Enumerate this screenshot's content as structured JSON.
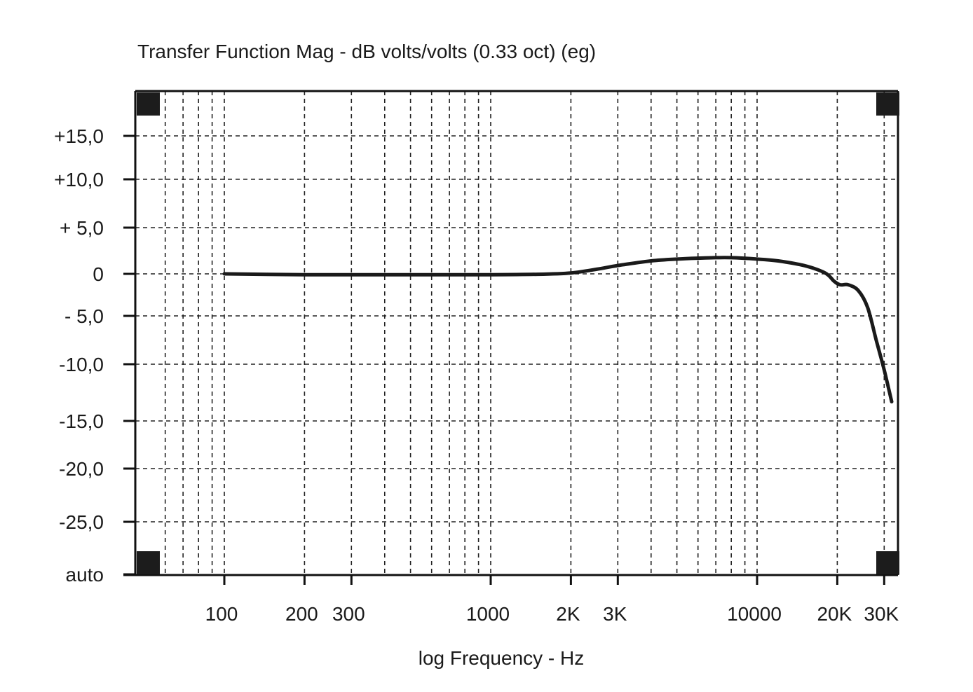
{
  "chart_data": {
    "type": "line",
    "title": "Transfer Function Mag - dB volts/volts (0.33 oct) (eg)",
    "xlabel": "log Frequency - Hz",
    "ylabel": "",
    "x_scale": "log",
    "xlim": [
      50,
      33000
    ],
    "ylim_labeled": [
      "auto",
      15
    ],
    "x_ticks": [
      {
        "value": 100,
        "label": "100"
      },
      {
        "value": 200,
        "label": "200"
      },
      {
        "value": 300,
        "label": "300"
      },
      {
        "value": 1000,
        "label": "1000"
      },
      {
        "value": 2000,
        "label": "2K"
      },
      {
        "value": 3000,
        "label": "3K"
      },
      {
        "value": 10000,
        "label": "10000"
      },
      {
        "value": 20000,
        "label": "20K"
      },
      {
        "value": 30000,
        "label": "30K"
      }
    ],
    "y_ticks": [
      {
        "value": 15,
        "label": "+15,0"
      },
      {
        "value": 10,
        "label": "+10,0"
      },
      {
        "value": 5,
        "label": "+ 5,0"
      },
      {
        "value": 0,
        "label": "0"
      },
      {
        "value": -5,
        "label": "- 5,0"
      },
      {
        "value": -10,
        "label": "-10,0"
      },
      {
        "value": -15,
        "label": "-15,0"
      },
      {
        "value": -20,
        "label": "-20,0"
      },
      {
        "value": -25,
        "label": "-25,0"
      },
      {
        "value": -33,
        "label": "auto"
      }
    ],
    "grid": true,
    "series": [
      {
        "x": [
          50,
          100,
          200,
          300,
          500,
          1000,
          1500,
          2000,
          2500,
          3000,
          4000,
          5000,
          6000,
          7000,
          8000,
          10000,
          12000,
          15000,
          18000,
          19500,
          20500,
          22000,
          24000,
          26000,
          28000,
          30000,
          32000
        ],
        "y": [
          0,
          0,
          -0.1,
          -0.1,
          -0.1,
          -0.1,
          -0.05,
          0.1,
          0.5,
          0.9,
          1.4,
          1.6,
          1.7,
          1.75,
          1.75,
          1.6,
          1.4,
          0.9,
          0.1,
          -0.9,
          -1.3,
          -1.3,
          -2.0,
          -4.0,
          -7.5,
          -10.5,
          -13.3
        ]
      }
    ]
  }
}
